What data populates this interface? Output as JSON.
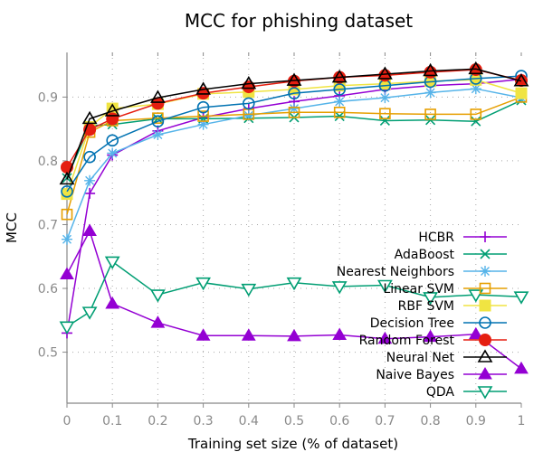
{
  "chart_data": {
    "type": "line",
    "title": "MCC for phishing dataset",
    "xlabel": "Training set size (% of dataset)",
    "ylabel": "MCC",
    "xlim": [
      0,
      1
    ],
    "ylim": [
      0.42,
      0.97
    ],
    "x_ticks": [
      0,
      0.1,
      0.2,
      0.3,
      0.4,
      0.5,
      0.6,
      0.7,
      0.8,
      0.9,
      1
    ],
    "x_tick_labels": [
      "0",
      "0.1",
      "0.2",
      "0.3",
      "0.4",
      "0.5",
      "0.6",
      "0.7",
      "0.8",
      "0.9",
      "1"
    ],
    "y_ticks": [
      0.5,
      0.6,
      0.7,
      0.8,
      0.9
    ],
    "y_tick_labels": [
      "0.5",
      "0.6",
      "0.7",
      "0.8",
      "0.9"
    ],
    "grid": true,
    "legend_position": "right",
    "x": [
      0,
      0.05,
      0.1,
      0.2,
      0.3,
      0.4,
      0.5,
      0.6,
      0.7,
      0.8,
      0.9,
      1
    ],
    "series": [
      {
        "name": "HCBR",
        "color": "#9400d3",
        "marker": "plus",
        "values": [
          0.53,
          0.749,
          0.809,
          0.847,
          0.868,
          0.882,
          0.893,
          0.902,
          0.912,
          0.918,
          0.921,
          0.928
        ]
      },
      {
        "name": "AdaBoost",
        "color": "#009e73",
        "marker": "x",
        "values": [
          0.773,
          0.855,
          0.857,
          0.866,
          0.866,
          0.867,
          0.868,
          0.87,
          0.863,
          0.864,
          0.862,
          0.895
        ]
      },
      {
        "name": "Nearest Neighbors",
        "color": "#56b4e9",
        "marker": "star",
        "values": [
          0.677,
          0.769,
          0.812,
          0.841,
          0.857,
          0.871,
          0.882,
          0.893,
          0.899,
          0.907,
          0.913,
          0.899
        ]
      },
      {
        "name": "Linear SVM",
        "color": "#e69f00",
        "marker": "square",
        "values": [
          0.716,
          0.845,
          0.863,
          0.867,
          0.87,
          0.873,
          0.876,
          0.876,
          0.874,
          0.873,
          0.873,
          0.9
        ]
      },
      {
        "name": "RBF SVM",
        "color": "#f0e442",
        "marker": "square-filled",
        "values": [
          0.748,
          0.853,
          0.882,
          0.889,
          0.905,
          0.908,
          0.912,
          0.918,
          0.921,
          0.925,
          0.927,
          0.906
        ]
      },
      {
        "name": "Decision Tree",
        "color": "#0072b2",
        "marker": "circle",
        "values": [
          0.752,
          0.806,
          0.832,
          0.862,
          0.884,
          0.89,
          0.906,
          0.912,
          0.918,
          0.924,
          0.929,
          0.933
        ]
      },
      {
        "name": "Random Forest",
        "color": "#e51e10",
        "marker": "circle-filled",
        "values": [
          0.79,
          0.849,
          0.866,
          0.89,
          0.906,
          0.916,
          0.925,
          0.931,
          0.934,
          0.939,
          0.943,
          0.926
        ]
      },
      {
        "name": "Neural Net",
        "color": "#000000",
        "marker": "triangle",
        "values": [
          0.771,
          0.866,
          0.878,
          0.899,
          0.912,
          0.921,
          0.926,
          0.931,
          0.936,
          0.941,
          0.944,
          0.925
        ]
      },
      {
        "name": "Naive Bayes",
        "color": "#9400d3",
        "marker": "triangle-filled",
        "values": [
          0.622,
          0.69,
          0.576,
          0.546,
          0.526,
          0.526,
          0.525,
          0.527,
          0.521,
          0.524,
          0.528,
          0.474
        ]
      },
      {
        "name": "QDA",
        "color": "#009e73",
        "marker": "triangle-down",
        "values": [
          0.54,
          0.563,
          0.642,
          0.59,
          0.609,
          0.599,
          0.609,
          0.603,
          0.605,
          0.586,
          0.59,
          0.587
        ]
      }
    ]
  }
}
